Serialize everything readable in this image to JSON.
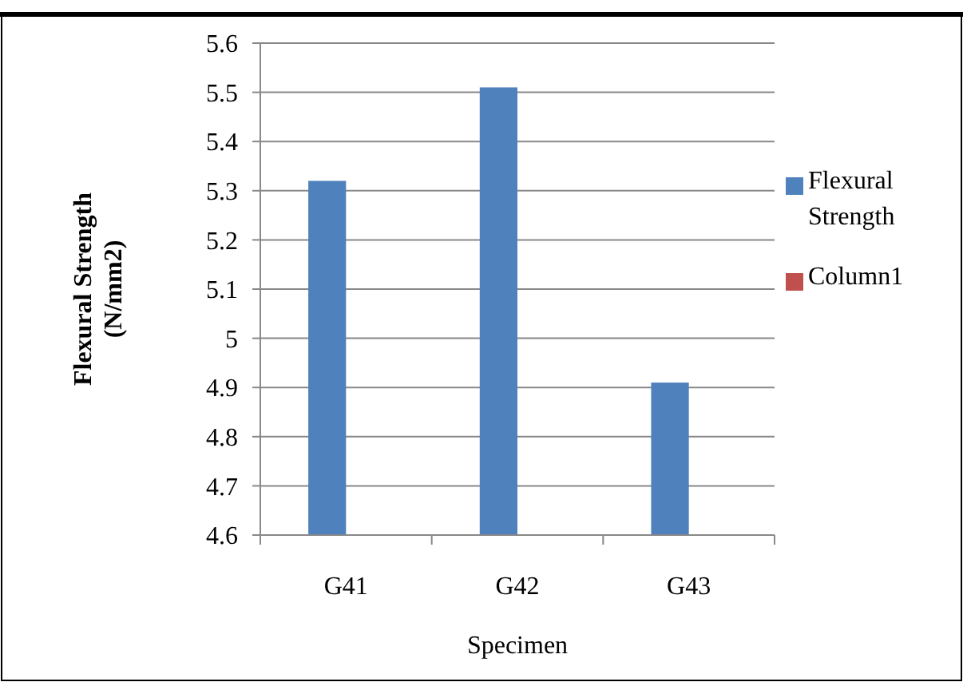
{
  "chart_data": {
    "type": "bar",
    "xlabel": "Specimen",
    "ylabel": "Flexural Strength (N/mm2)",
    "categories": [
      "G41",
      "G42",
      "G43"
    ],
    "series": [
      {
        "name": "Flexural Strength",
        "color": "#4f81bd",
        "values": [
          5.32,
          5.51,
          4.91
        ]
      },
      {
        "name": "Column1",
        "color": "#c0504d",
        "values": [
          null,
          null,
          null
        ]
      }
    ],
    "ylim": [
      4.6,
      5.6
    ],
    "yticks": [
      4.6,
      4.7,
      4.8,
      4.9,
      5,
      5.1,
      5.2,
      5.3,
      5.4,
      5.5,
      5.6
    ],
    "grid": "y",
    "legend": "right"
  }
}
